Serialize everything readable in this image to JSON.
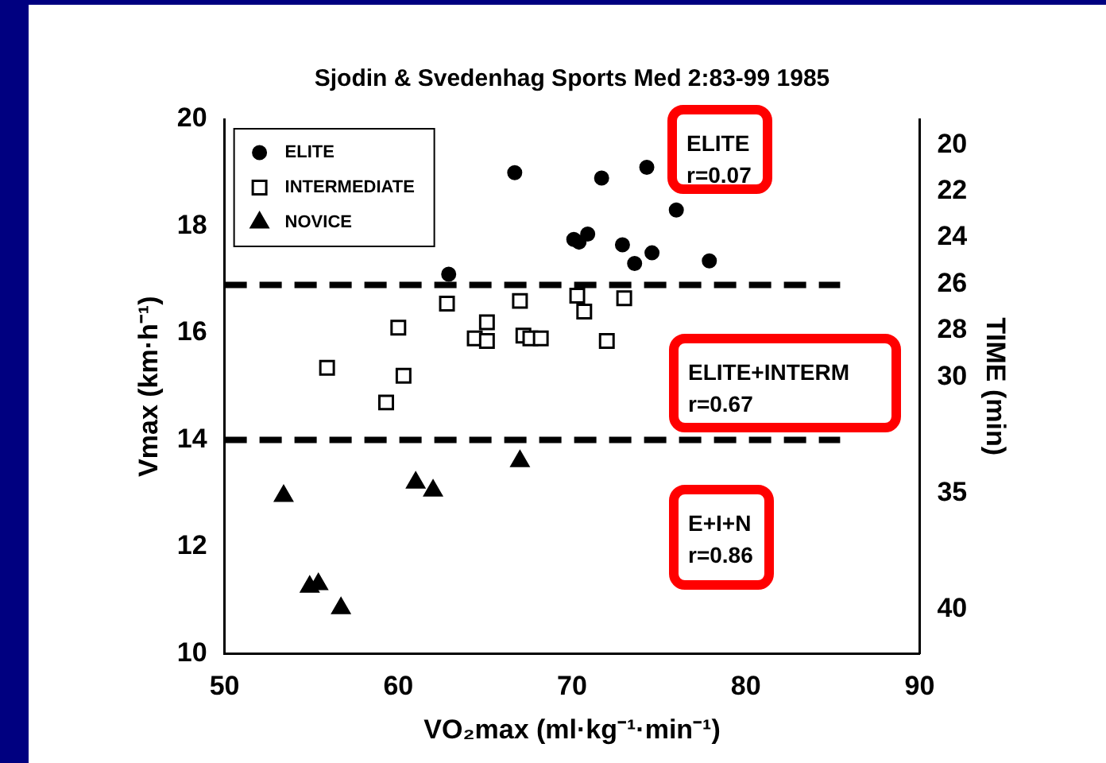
{
  "chart_data": {
    "type": "scatter",
    "title": "Sjodin & Svedenhag Sports Med 2:83-99 1985",
    "xlabel": "VO₂max (ml·kg⁻¹·min⁻¹)",
    "ylabel": "Vmax (km·h⁻¹)",
    "y2label": "TIME (min)",
    "xlim": [
      50,
      90
    ],
    "xticks": [
      50,
      60,
      70,
      80,
      90
    ],
    "ylim": [
      10,
      20
    ],
    "yticks": [
      10,
      12,
      14,
      16,
      18,
      20
    ],
    "y2lim": [
      41.9,
      18.9
    ],
    "y2ticks": [
      20,
      22,
      24,
      26,
      28,
      30,
      35,
      40
    ],
    "grid": false,
    "legend": "top left",
    "series": [
      {
        "name": "ELITE",
        "color": "#000000",
        "marker": "circle",
        "x": [
          66.7,
          71.7,
          74.3,
          76.0,
          62.9,
          70.1,
          70.4,
          70.9,
          72.9,
          73.6,
          74.6,
          77.9
        ],
        "values": [
          19.0,
          18.9,
          19.1,
          18.3,
          17.1,
          17.75,
          17.7,
          17.85,
          17.65,
          17.3,
          17.5,
          17.35
        ]
      },
      {
        "name": "INTERMEDIATE",
        "color": "#000000",
        "marker": "square",
        "x": [
          55.9,
          60.0,
          60.3,
          59.3,
          62.8,
          64.4,
          65.1,
          65.1,
          67.0,
          67.2,
          67.6,
          68.2,
          70.3,
          70.7,
          72.0,
          73.0
        ],
        "values": [
          15.35,
          16.1,
          15.2,
          14.7,
          16.55,
          15.9,
          16.2,
          15.85,
          16.6,
          15.95,
          15.9,
          15.9,
          16.7,
          16.4,
          15.85,
          16.65
        ]
      },
      {
        "name": "NOVICE",
        "color": "#000000",
        "marker": "triangle",
        "x": [
          53.4,
          54.9,
          55.4,
          56.7,
          61.0,
          62.0,
          67.0
        ],
        "values": [
          12.95,
          11.25,
          11.3,
          10.85,
          13.2,
          13.05,
          13.6
        ]
      }
    ],
    "ref_lines": [
      {
        "axis": "y",
        "value": 16.9,
        "line_style": "dashed",
        "color": "#000000"
      },
      {
        "axis": "y",
        "value": 14.0,
        "line_style": "dashed",
        "color": "#000000"
      }
    ],
    "annotations": [
      "ELITE\nr=0.07",
      "ELITE+INTERM\nr=0.67",
      "E+I+N\nr=0.86"
    ]
  }
}
